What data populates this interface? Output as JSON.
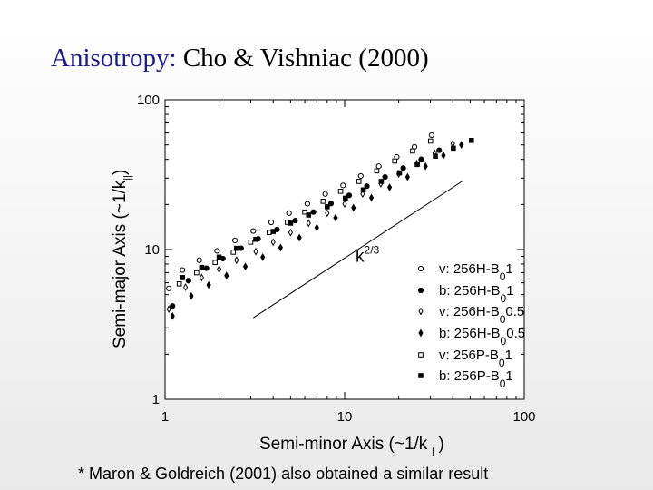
{
  "slide": {
    "title_main": "Anisotropy:",
    "title_rest": "Cho & Vishniac (2000)",
    "footnote": "* Maron & Goldreich (2001) also obtained a similar result"
  },
  "chart_data": {
    "type": "scatter",
    "xscale": "log",
    "yscale": "log",
    "xlim": [
      1,
      100
    ],
    "ylim": [
      1,
      100
    ],
    "xticks": [
      "1",
      "10",
      "100"
    ],
    "yticks": [
      "1",
      "10",
      "100"
    ],
    "xlabel": {
      "main": "Semi-minor Axis (~1/k",
      "sub": "⊥",
      "close": ")"
    },
    "ylabel": {
      "main": "Semi-major Axis (~1/k",
      "sub": "||",
      "close": ")"
    },
    "grid": false,
    "legend_position": "bottom-right",
    "annotation": {
      "base": "k",
      "sup": "2/3",
      "x": 11.5,
      "y": 8.3
    },
    "reference_line": {
      "x": [
        3.1,
        45
      ],
      "y": [
        3.5,
        28.5
      ]
    },
    "series": [
      {
        "name": "v: 256H-B",
        "sub": "0",
        "tail": "1",
        "marker": "open-circle",
        "x": [
          1.05,
          1.25,
          1.55,
          1.95,
          2.45,
          3.1,
          3.9,
          4.9,
          6.2,
          7.8,
          9.8,
          12.3,
          15.5,
          19.5,
          24.5,
          30.5
        ],
        "y": [
          5.5,
          7.3,
          8.5,
          9.8,
          11.5,
          13.3,
          15.2,
          17.5,
          20.2,
          23.5,
          26.8,
          31.0,
          36.0,
          41.5,
          48.5,
          58.0
        ]
      },
      {
        "name": "b: 256H-B",
        "sub": "0",
        "tail": "1",
        "marker": "filled-circle",
        "x": [
          1.1,
          1.35,
          1.7,
          2.1,
          2.65,
          3.3,
          4.2,
          5.3,
          6.7,
          8.4,
          10.6,
          13.3,
          16.8,
          21.2,
          26.7,
          33.6
        ],
        "y": [
          4.2,
          6.2,
          7.5,
          8.7,
          10.2,
          11.8,
          13.6,
          15.6,
          17.8,
          20.3,
          23.0,
          26.5,
          30.5,
          35.0,
          40.0,
          46.0
        ]
      },
      {
        "name": "v: 256H-B",
        "sub": "0",
        "tail": "0.5",
        "marker": "open-diamond",
        "x": [
          1.05,
          1.3,
          1.6,
          2.0,
          2.5,
          3.2,
          4.0,
          5.0,
          6.3,
          8.0,
          10.0,
          12.6,
          15.9,
          20.0,
          25.2,
          31.7,
          40.0
        ],
        "y": [
          4.0,
          5.6,
          6.5,
          7.4,
          8.5,
          9.7,
          11.2,
          13.0,
          15.0,
          17.5,
          20.2,
          23.5,
          27.5,
          32.0,
          37.5,
          44.0,
          51.0
        ]
      },
      {
        "name": "b: 256H-B",
        "sub": "0",
        "tail": "0.5",
        "marker": "filled-diamond",
        "x": [
          1.1,
          1.4,
          1.75,
          2.2,
          2.8,
          3.5,
          4.4,
          5.6,
          7.0,
          8.9,
          11.2,
          14.1,
          17.8,
          22.4,
          28.2,
          35.5,
          44.7
        ],
        "y": [
          3.6,
          4.9,
          5.8,
          6.7,
          7.7,
          8.9,
          10.3,
          12.0,
          14.0,
          16.3,
          19.0,
          22.2,
          26.0,
          30.5,
          36.0,
          42.5,
          50.0
        ]
      },
      {
        "name": "v: 256P-B",
        "sub": "0",
        "tail": "1",
        "marker": "open-square",
        "x": [
          1.2,
          1.5,
          1.9,
          2.4,
          3.0,
          3.8,
          4.8,
          6.0,
          7.6,
          9.5,
          12.0,
          15.1,
          19.0,
          23.9,
          30.1
        ],
        "y": [
          5.9,
          7.0,
          8.2,
          9.6,
          11.2,
          13.0,
          15.2,
          17.8,
          21.0,
          24.5,
          28.5,
          33.5,
          39.0,
          45.5,
          53.0
        ]
      },
      {
        "name": "b: 256P-B",
        "sub": "0",
        "tail": "1",
        "marker": "filled-square",
        "x": [
          1.25,
          1.6,
          2.0,
          2.5,
          3.2,
          4.0,
          5.0,
          6.3,
          8.0,
          10.1,
          12.7,
          16.0,
          20.2,
          25.4,
          32.0,
          40.3,
          50.8
        ],
        "y": [
          6.5,
          7.6,
          8.9,
          10.2,
          11.7,
          13.2,
          15.0,
          17.0,
          19.3,
          22.0,
          25.0,
          28.5,
          32.5,
          37.0,
          42.0,
          47.5,
          53.5
        ]
      }
    ]
  }
}
